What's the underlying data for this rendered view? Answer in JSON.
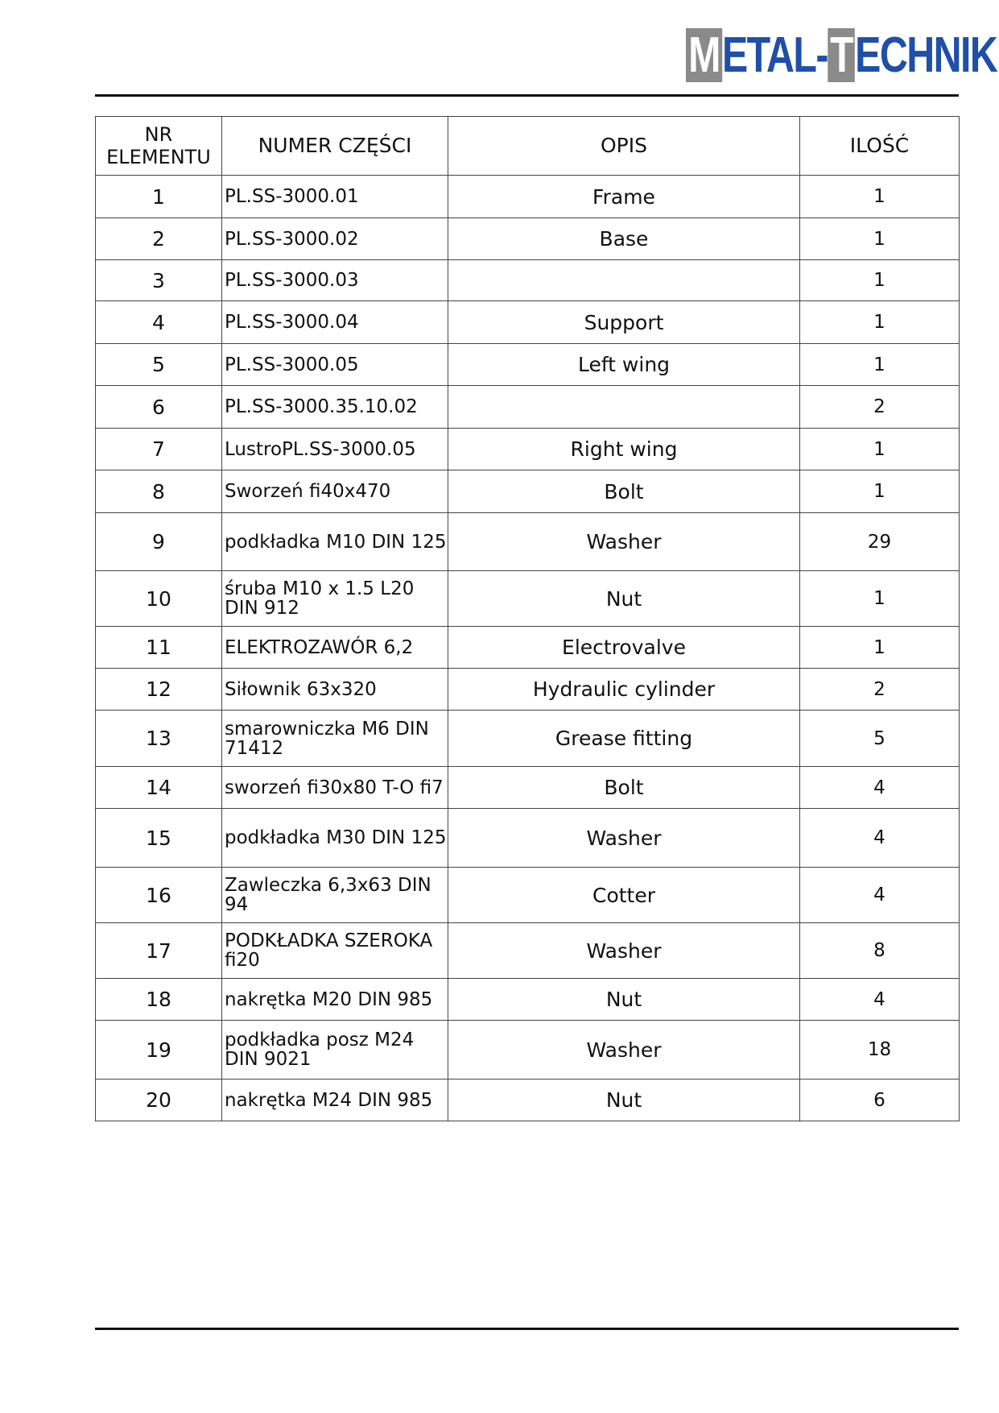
{
  "logo": {
    "text_box1": "M",
    "text1": "ETAL-",
    "text_box2": "T",
    "text2": "ECHNIK",
    "colors": {
      "blue": "#1f4fa8",
      "gray": "#8a8a8a"
    }
  },
  "table": {
    "headers": [
      "NR ELEMENTU",
      "NUMER CZĘŚCI",
      "OPIS",
      "ILOŚĆ"
    ],
    "rows": [
      {
        "nr": "1",
        "part": "PL.SS-3000.01",
        "desc": "Frame",
        "qty": "1"
      },
      {
        "nr": "2",
        "part": "PL.SS-3000.02",
        "desc": "Base",
        "qty": "1"
      },
      {
        "nr": "3",
        "part": "PL.SS-3000.03",
        "desc": "",
        "qty": "1"
      },
      {
        "nr": "4",
        "part": "PL.SS-3000.04",
        "desc": "Support",
        "qty": "1"
      },
      {
        "nr": "5",
        "part": "PL.SS-3000.05",
        "desc": "Left wing",
        "qty": "1"
      },
      {
        "nr": "6",
        "part": "PL.SS-3000.35.10.02",
        "desc": "",
        "qty": "2"
      },
      {
        "nr": "7",
        "part": "LustroPL.SS-3000.05",
        "desc": "Right wing",
        "qty": "1"
      },
      {
        "nr": "8",
        "part": "Sworzeń fi40x470",
        "desc": "Bolt",
        "qty": "1"
      },
      {
        "nr": "9",
        "part": "podkładka M10 DIN 125",
        "desc": "Washer",
        "qty": "29"
      },
      {
        "nr": "10",
        "part": "śruba M10 x 1.5 L20 DIN 912",
        "desc": "Nut",
        "qty": "1"
      },
      {
        "nr": "11",
        "part": "ELEKTROZAWÓR 6,2",
        "desc": "Electrovalve",
        "qty": "1"
      },
      {
        "nr": "12",
        "part": "Siłownik 63x320",
        "desc": "Hydraulic cylinder",
        "qty": "2"
      },
      {
        "nr": "13",
        "part": "smarowniczka M6 DIN 71412",
        "desc": "Grease fitting",
        "qty": "5"
      },
      {
        "nr": "14",
        "part": "sworzeń fi30x80 T-O fi7",
        "desc": "Bolt",
        "qty": "4"
      },
      {
        "nr": "15",
        "part": "podkładka M30 DIN 125",
        "desc": "Washer",
        "qty": "4"
      },
      {
        "nr": "16",
        "part": "Zawleczka 6,3x63 DIN 94",
        "desc": "Cotter",
        "qty": "4"
      },
      {
        "nr": "17",
        "part": "PODKŁADKA SZEROKA fi20",
        "desc": "Washer",
        "qty": "8"
      },
      {
        "nr": "18",
        "part": "nakrętka M20 DIN 985",
        "desc": "Nut",
        "qty": "4"
      },
      {
        "nr": "19",
        "part": "podkładka posz M24 DIN 9021",
        "desc": "Washer",
        "qty": "18"
      },
      {
        "nr": "20",
        "part": "nakrętka M24 DIN 985",
        "desc": "Nut",
        "qty": "6"
      }
    ]
  }
}
